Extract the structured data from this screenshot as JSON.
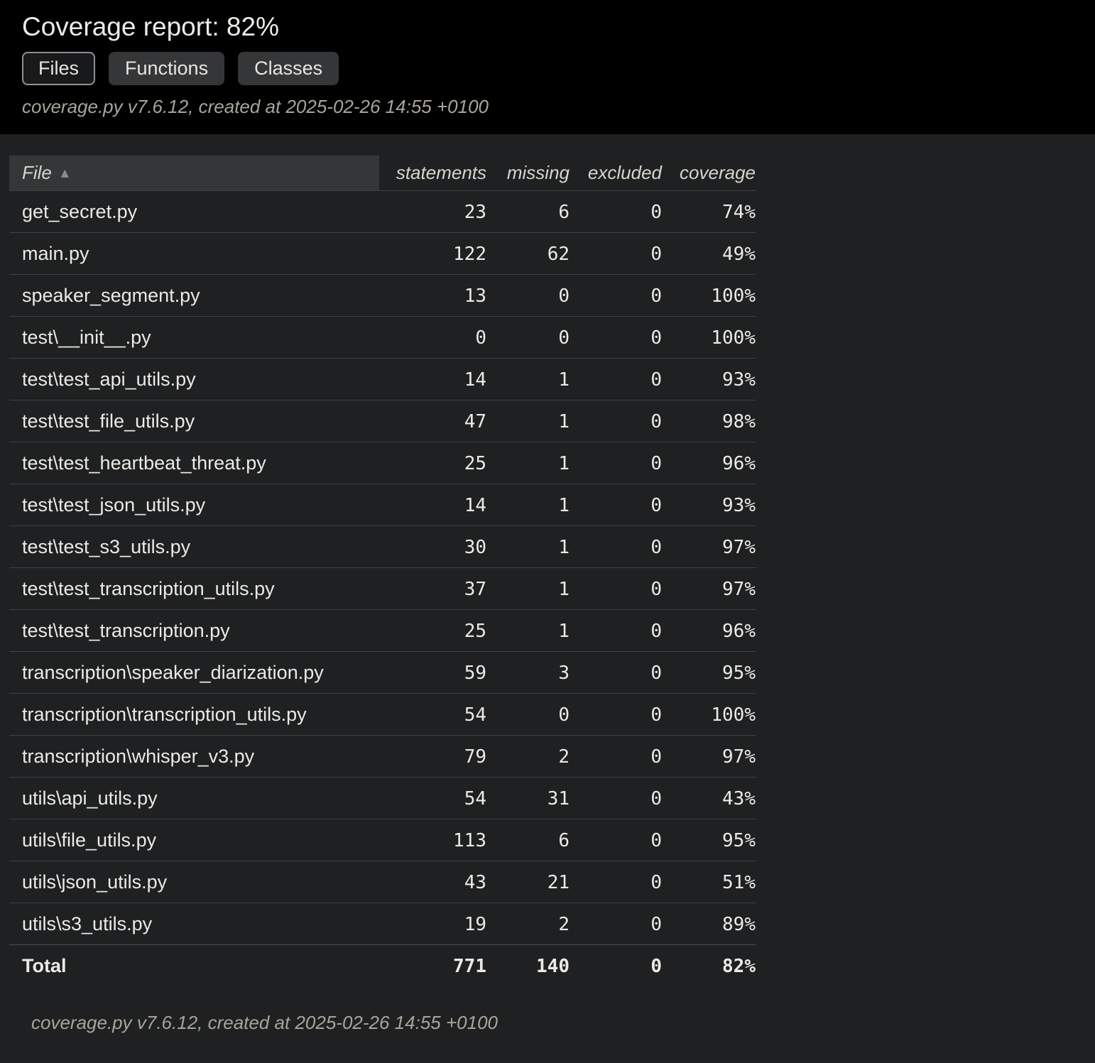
{
  "header": {
    "title": "Coverage report: 82%",
    "buttons": [
      {
        "label": "Files",
        "active": true
      },
      {
        "label": "Functions",
        "active": false
      },
      {
        "label": "Classes",
        "active": false
      }
    ],
    "meta": "coverage.py v7.6.12, created at 2025-02-26 14:55 +0100"
  },
  "table": {
    "columns": [
      "File",
      "statements",
      "missing",
      "excluded",
      "coverage"
    ],
    "sort_indicator": "▲",
    "rows": [
      {
        "file": "get_secret.py",
        "statements": "23",
        "missing": "6",
        "excluded": "0",
        "coverage": "74%"
      },
      {
        "file": "main.py",
        "statements": "122",
        "missing": "62",
        "excluded": "0",
        "coverage": "49%"
      },
      {
        "file": "speaker_segment.py",
        "statements": "13",
        "missing": "0",
        "excluded": "0",
        "coverage": "100%"
      },
      {
        "file": "test\\__init__.py",
        "statements": "0",
        "missing": "0",
        "excluded": "0",
        "coverage": "100%"
      },
      {
        "file": "test\\test_api_utils.py",
        "statements": "14",
        "missing": "1",
        "excluded": "0",
        "coverage": "93%"
      },
      {
        "file": "test\\test_file_utils.py",
        "statements": "47",
        "missing": "1",
        "excluded": "0",
        "coverage": "98%"
      },
      {
        "file": "test\\test_heartbeat_threat.py",
        "statements": "25",
        "missing": "1",
        "excluded": "0",
        "coverage": "96%"
      },
      {
        "file": "test\\test_json_utils.py",
        "statements": "14",
        "missing": "1",
        "excluded": "0",
        "coverage": "93%"
      },
      {
        "file": "test\\test_s3_utils.py",
        "statements": "30",
        "missing": "1",
        "excluded": "0",
        "coverage": "97%"
      },
      {
        "file": "test\\test_transcription_utils.py",
        "statements": "37",
        "missing": "1",
        "excluded": "0",
        "coverage": "97%"
      },
      {
        "file": "test\\test_transcription.py",
        "statements": "25",
        "missing": "1",
        "excluded": "0",
        "coverage": "96%"
      },
      {
        "file": "transcription\\speaker_diarization.py",
        "statements": "59",
        "missing": "3",
        "excluded": "0",
        "coverage": "95%"
      },
      {
        "file": "transcription\\transcription_utils.py",
        "statements": "54",
        "missing": "0",
        "excluded": "0",
        "coverage": "100%"
      },
      {
        "file": "transcription\\whisper_v3.py",
        "statements": "79",
        "missing": "2",
        "excluded": "0",
        "coverage": "97%"
      },
      {
        "file": "utils\\api_utils.py",
        "statements": "54",
        "missing": "31",
        "excluded": "0",
        "coverage": "43%"
      },
      {
        "file": "utils\\file_utils.py",
        "statements": "113",
        "missing": "6",
        "excluded": "0",
        "coverage": "95%"
      },
      {
        "file": "utils\\json_utils.py",
        "statements": "43",
        "missing": "21",
        "excluded": "0",
        "coverage": "51%"
      },
      {
        "file": "utils\\s3_utils.py",
        "statements": "19",
        "missing": "2",
        "excluded": "0",
        "coverage": "89%"
      }
    ],
    "total": {
      "file": "Total",
      "statements": "771",
      "missing": "140",
      "excluded": "0",
      "coverage": "82%"
    }
  },
  "footer": {
    "meta": "coverage.py v7.6.12, created at 2025-02-26 14:55 +0100"
  },
  "colors": {
    "header_background": "#000000",
    "content_background": "#1e2021",
    "text": "#e8e6e3",
    "muted_text": "#a9a49c",
    "file_header_cell": "#343738",
    "button_fill": "#343638",
    "active_button_border": "#8f9092",
    "row_divider": "#3f4346"
  }
}
